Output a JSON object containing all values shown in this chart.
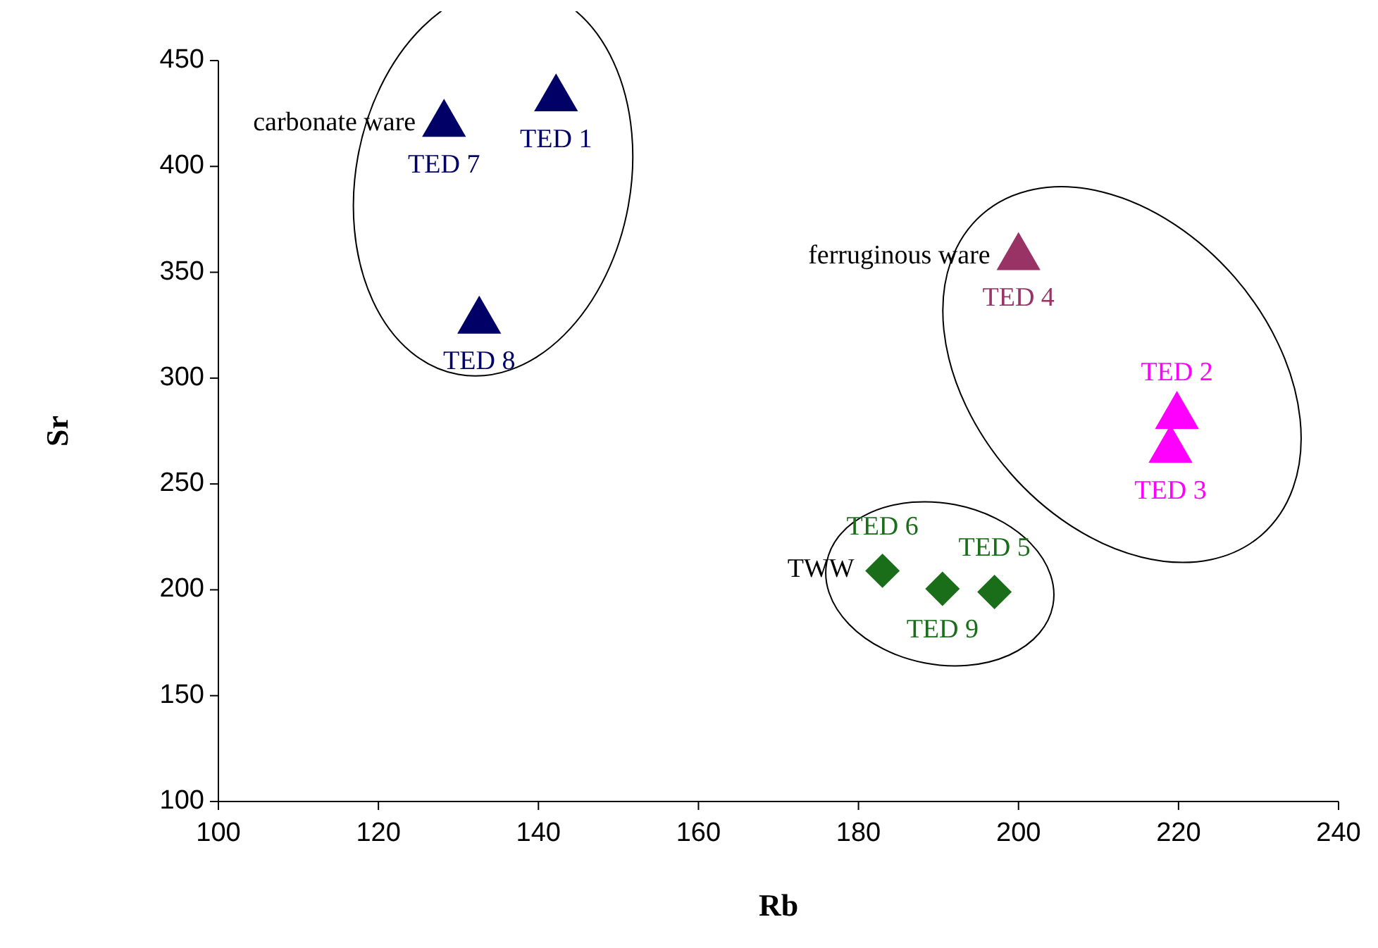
{
  "chart_data": {
    "type": "scatter",
    "xlabel": "Rb",
    "ylabel": "Sr",
    "xlim": [
      100,
      240
    ],
    "ylim": [
      100,
      450
    ],
    "xticks": [
      100,
      120,
      140,
      160,
      180,
      200,
      220,
      240
    ],
    "yticks": [
      100,
      150,
      200,
      250,
      300,
      350,
      400,
      450
    ],
    "grid": false,
    "legend": false,
    "series": [
      {
        "name": "carbonate ware",
        "type": "scatter",
        "marker": "triangle",
        "x": [
          128.2,
          142.2,
          132.6
        ],
        "values": [
          420,
          432,
          327
        ],
        "colors": [
          "#000066",
          "#000066",
          "#000066"
        ],
        "value_labels": [
          "TED 7",
          "TED 1",
          "TED 8"
        ]
      },
      {
        "name": "ferruginous ware",
        "type": "scatter",
        "marker": "triangle",
        "x": [
          200,
          219.8,
          219
        ],
        "values": [
          357,
          282,
          266
        ],
        "colors": [
          "#993366",
          "#ff00ff",
          "#ff00ff"
        ],
        "value_labels": [
          "TED 4",
          "TED 2",
          "TED 3"
        ]
      },
      {
        "name": "TWW",
        "type": "scatter",
        "marker": "diamond",
        "x": [
          183,
          190.5,
          197
        ],
        "values": [
          209,
          200.5,
          199
        ],
        "colors": [
          "#1a6e1a",
          "#1a6e1a",
          "#1a6e1a"
        ],
        "value_labels": [
          "TED 6",
          "TED 9",
          "TED 5"
        ]
      }
    ]
  }
}
